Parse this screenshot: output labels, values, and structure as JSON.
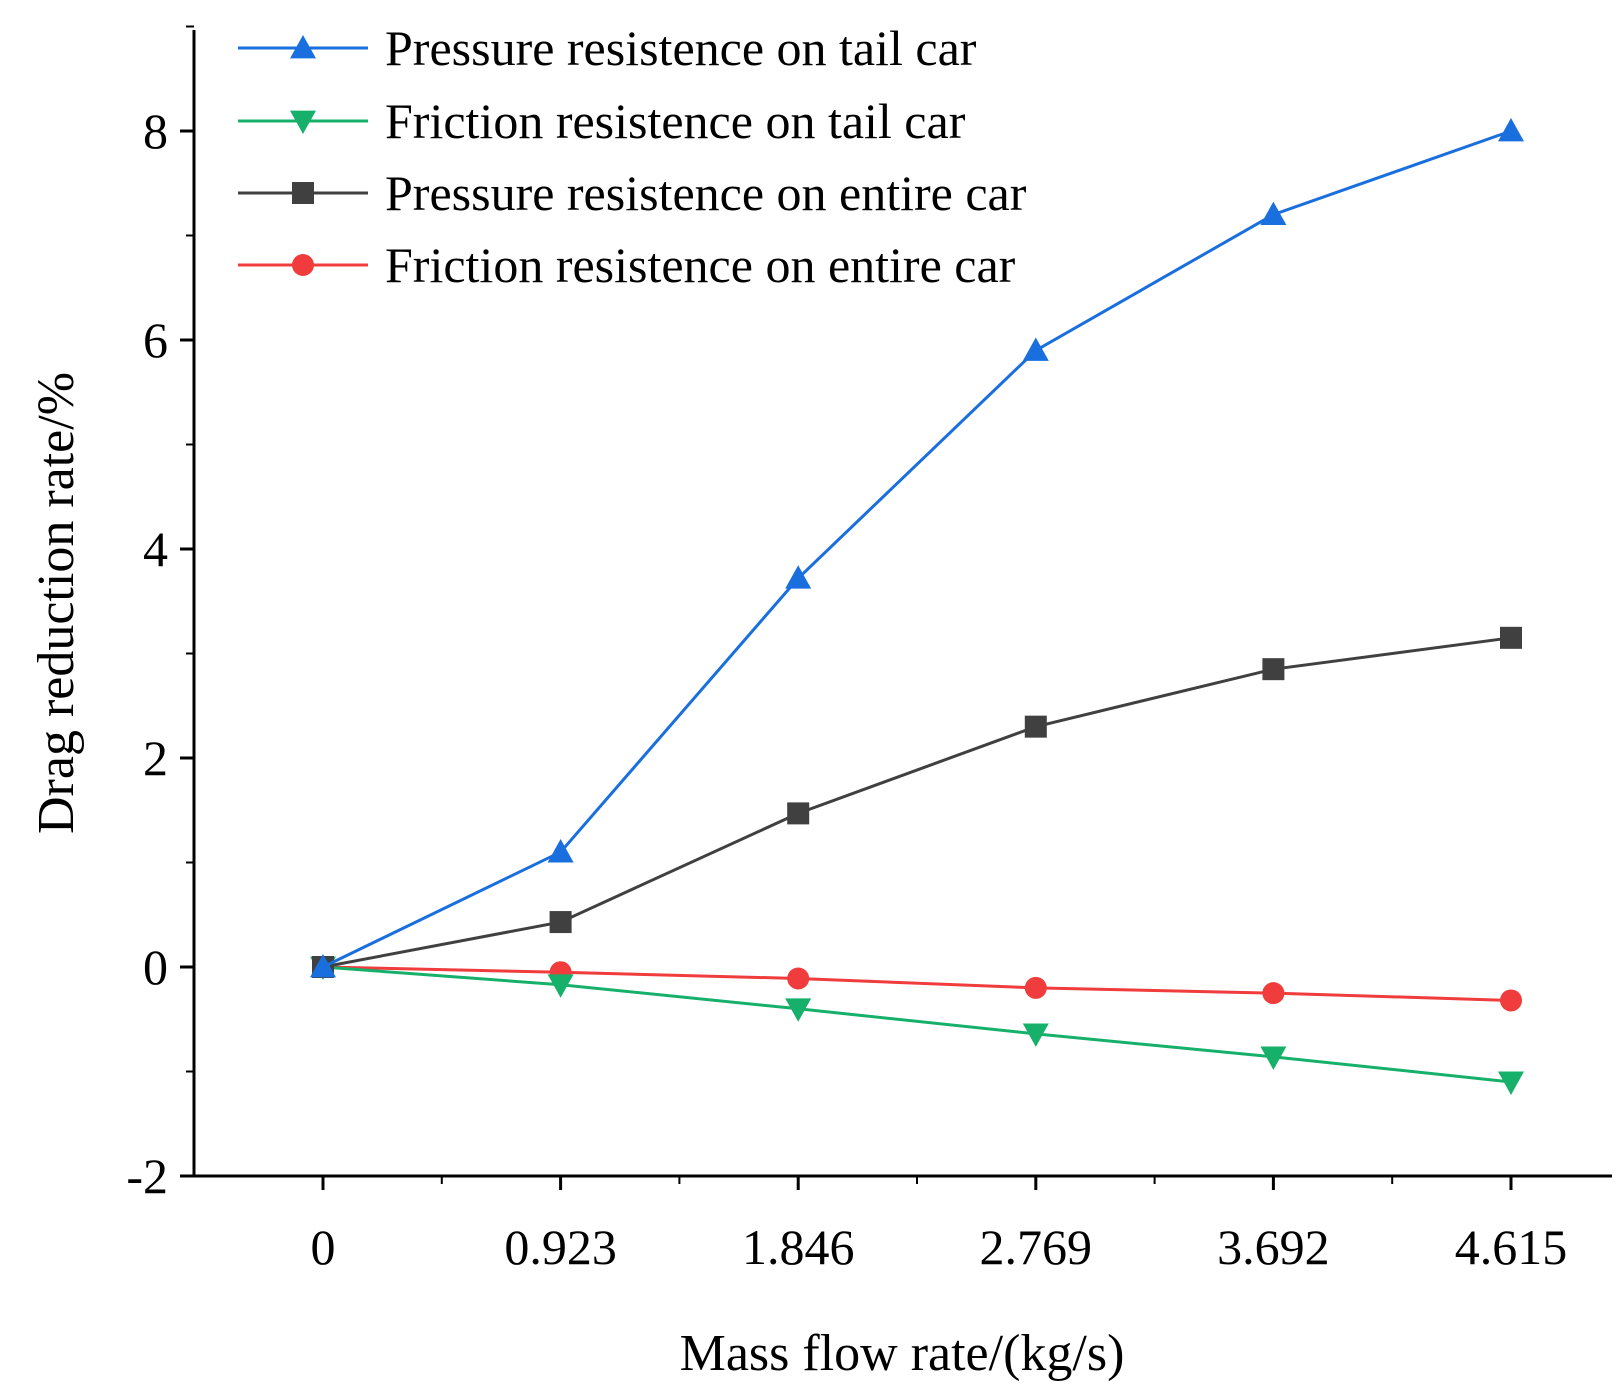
{
  "chart_data": {
    "type": "line",
    "title": "",
    "xlabel": "Mass flow rate/(kg/s)",
    "ylabel": "Drag reduction rate/%",
    "categories": [
      "0",
      "0.923",
      "1.846",
      "2.769",
      "3.692",
      "4.615"
    ],
    "ylim": [
      -2,
      9
    ],
    "yticks": [
      -2,
      0,
      2,
      4,
      6,
      8
    ],
    "ytick_labels": [
      "-2",
      "0",
      "2",
      "4",
      "6",
      "8"
    ],
    "grid": false,
    "legend_position": "top-left",
    "series": [
      {
        "name": "Pressure resistence on tail car",
        "color": "#1a6fdf",
        "marker": "triangle-up",
        "values": [
          0,
          1.1,
          3.72,
          5.9,
          7.2,
          8.0
        ]
      },
      {
        "name": "Friction resistence on tail car",
        "color": "#16b06a",
        "marker": "triangle-down",
        "values": [
          0,
          -0.17,
          -0.4,
          -0.64,
          -0.86,
          -1.1
        ]
      },
      {
        "name": "Pressure resistence on entire car",
        "color": "#404040",
        "marker": "square",
        "values": [
          0,
          0.43,
          1.47,
          2.3,
          2.85,
          3.15
        ]
      },
      {
        "name": "Friction resistence on entire car",
        "color": "#f03c3c",
        "marker": "circle",
        "values": [
          0,
          -0.05,
          -0.11,
          -0.2,
          -0.25,
          -0.32
        ]
      }
    ]
  }
}
